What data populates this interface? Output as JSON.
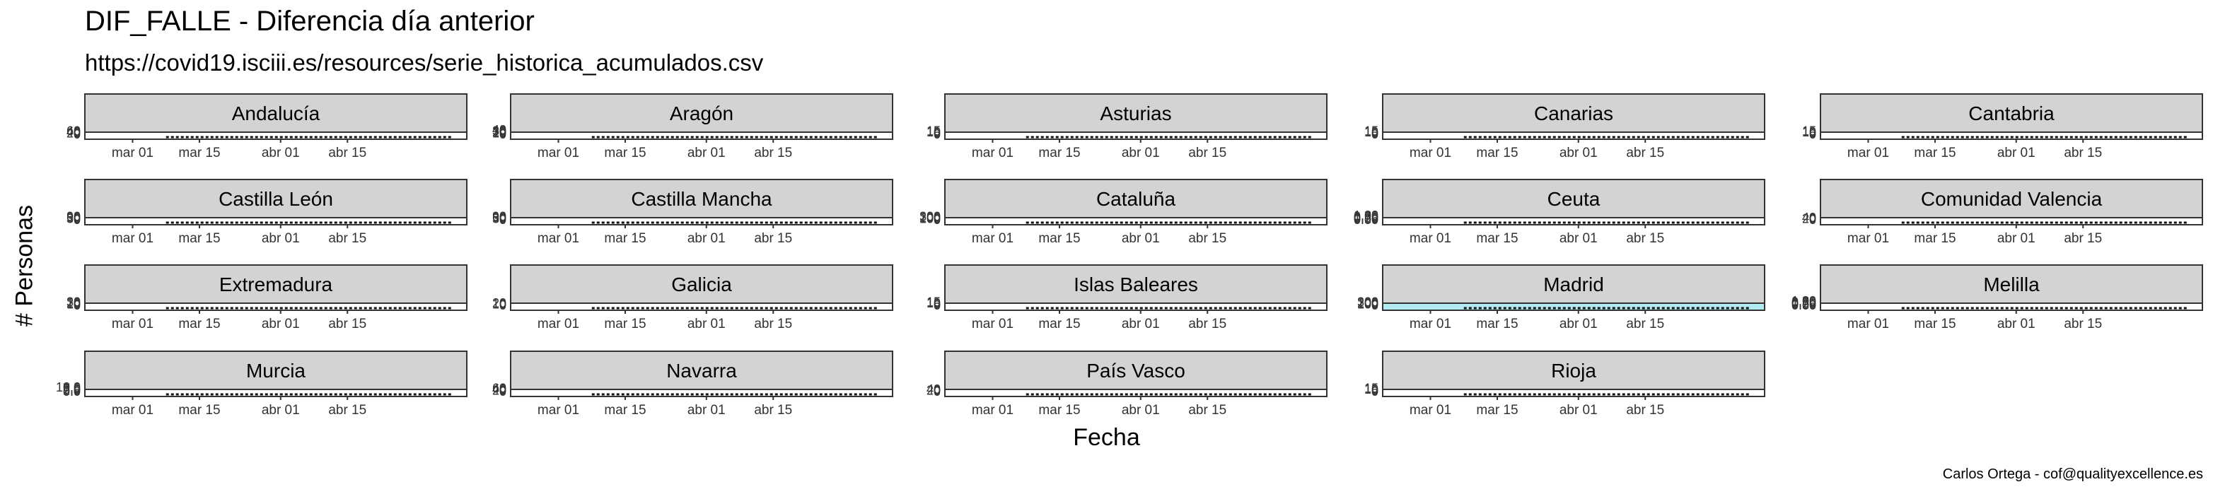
{
  "header": {
    "title": "DIF_FALLE - Diferencia día anterior",
    "subtitle": "https://covid19.isciii.es/resources/serie_historica_acumulados.csv",
    "caption": "Carlos Ortega - cof@qualityexcellence.es"
  },
  "chart_data": {
    "type": "area",
    "xlabel": "Fecha",
    "ylabel": "# Personas",
    "x_ticks": [
      "mar 01",
      "mar 15",
      "abr 01",
      "abr 15"
    ],
    "x_range": [
      "2020-02-20",
      "2020-05-10"
    ],
    "data_start": "2020-03-08",
    "data_end": "2020-05-07",
    "panels": [
      {
        "name": "Andalucía",
        "y_ticks": [
          "0",
          "20",
          "40",
          "60"
        ],
        "fill": "#ffffff"
      },
      {
        "name": "Aragón",
        "y_ticks": [
          "0",
          "10",
          "20",
          "30",
          "40"
        ],
        "fill": "#ffffff"
      },
      {
        "name": "Asturias",
        "y_ticks": [
          "0",
          "5",
          "10",
          "15"
        ],
        "fill": "#ffffff"
      },
      {
        "name": "Canarias",
        "y_ticks": [
          "0",
          "5",
          "10",
          "15"
        ],
        "fill": "#ffffff"
      },
      {
        "name": "Cantabria",
        "y_ticks": [
          "0",
          "5",
          "10",
          "15"
        ],
        "fill": "#ffffff"
      },
      {
        "name": "Castilla León",
        "y_ticks": [
          "0",
          "30",
          "60",
          "90"
        ],
        "fill": "#ffffff"
      },
      {
        "name": "Castilla Mancha",
        "y_ticks": [
          "0",
          "30",
          "60",
          "90"
        ],
        "fill": "#ffffff"
      },
      {
        "name": "Cataluña",
        "y_ticks": [
          "0",
          "100",
          "200",
          "300"
        ],
        "fill": "#ffffff"
      },
      {
        "name": "Ceuta",
        "y_ticks": [
          "0.00",
          "0.25",
          "0.50",
          "0.75",
          "1.00"
        ],
        "fill": "#ffffff"
      },
      {
        "name": "Comunidad Valencia",
        "y_ticks": [
          "0",
          "20",
          "40"
        ],
        "fill": "#ffffff"
      },
      {
        "name": "Extremadura",
        "y_ticks": [
          "0",
          "10",
          "20",
          "30"
        ],
        "fill": "#ffffff"
      },
      {
        "name": "Galicia",
        "y_ticks": [
          "0",
          "10",
          "20"
        ],
        "fill": "#ffffff"
      },
      {
        "name": "Islas Baleares",
        "y_ticks": [
          "0",
          "5",
          "10",
          "15"
        ],
        "fill": "#ffffff"
      },
      {
        "name": "Madrid",
        "y_ticks": [
          "0",
          "100",
          "200",
          "300"
        ],
        "fill": "#b2ebf2"
      },
      {
        "name": "Melilla",
        "y_ticks": [
          "0.00",
          "0.25",
          "0.50",
          "0.75",
          "1.00"
        ],
        "fill": "#ffffff"
      },
      {
        "name": "Murcia",
        "y_ticks": [
          "0.0",
          "2.5",
          "5.0",
          "7.5",
          "10.0"
        ],
        "fill": "#ffffff"
      },
      {
        "name": "Navarra",
        "y_ticks": [
          "0",
          "20",
          "40",
          "60"
        ],
        "fill": "#ffffff"
      },
      {
        "name": "País Vasco",
        "y_ticks": [
          "0",
          "20",
          "40"
        ],
        "fill": "#ffffff"
      },
      {
        "name": "Rioja",
        "y_ticks": [
          "0",
          "5",
          "10",
          "15"
        ],
        "fill": "#ffffff"
      }
    ]
  }
}
